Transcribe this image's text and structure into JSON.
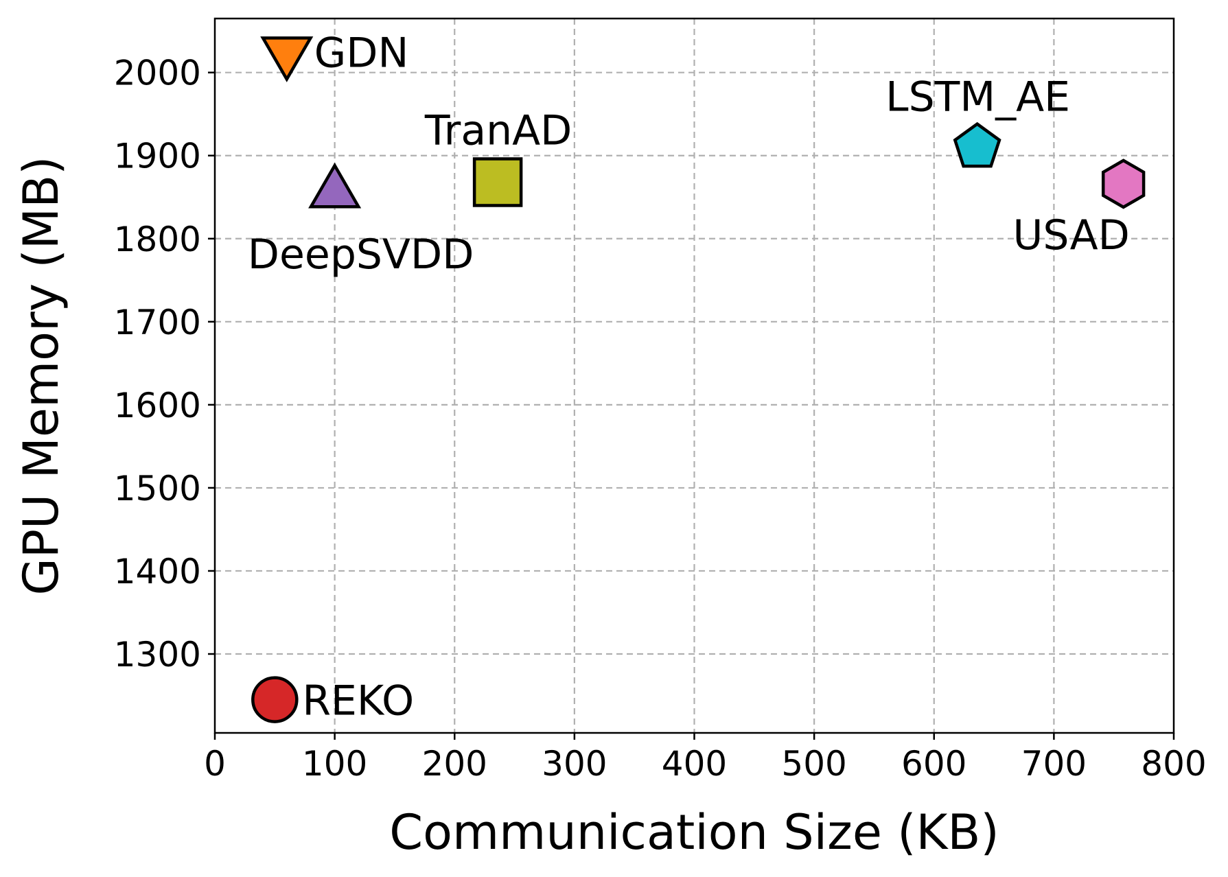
{
  "chart_data": {
    "type": "scatter",
    "title": "",
    "xlabel": "Communication Size (KB)",
    "ylabel": "GPU Memory (MB)",
    "xlim": [
      0,
      800
    ],
    "ylim": [
      1205,
      2065
    ],
    "xticks": [
      0,
      100,
      200,
      300,
      400,
      500,
      600,
      700,
      800
    ],
    "yticks": [
      1300,
      1400,
      1500,
      1600,
      1700,
      1800,
      1900,
      2000
    ],
    "grid": true,
    "points": [
      {
        "name": "GDN",
        "x": 60,
        "y": 2025,
        "marker": "triangle-down",
        "color": "#ff7f0e",
        "label_position": "right"
      },
      {
        "name": "DeepSVDD",
        "x": 100,
        "y": 1855,
        "marker": "triangle-up",
        "color": "#9467bd",
        "label_position": "below"
      },
      {
        "name": "TranAD",
        "x": 236,
        "y": 1868,
        "marker": "square",
        "color": "#bcbd22",
        "label_position": "above"
      },
      {
        "name": "LSTM_AE",
        "x": 636,
        "y": 1910,
        "marker": "pentagon",
        "color": "#17becf",
        "label_position": "above"
      },
      {
        "name": "USAD",
        "x": 758,
        "y": 1866,
        "marker": "hexagon",
        "color": "#e377c2",
        "label_position": "below-left"
      },
      {
        "name": "REKO",
        "x": 50,
        "y": 1245,
        "marker": "circle",
        "color": "#d62728",
        "label_position": "right"
      }
    ]
  }
}
